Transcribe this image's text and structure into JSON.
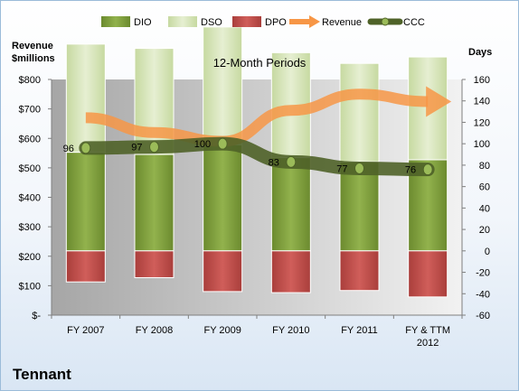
{
  "company": "Tennant",
  "chart_data": {
    "type": "bar",
    "title": "12-Month Periods",
    "categories": [
      "FY 2007",
      "FY 2008",
      "FY 2009",
      "FY 2010",
      "FY 2011",
      "FY & TTM 2012"
    ],
    "y_left": {
      "label_line1": "Revenue",
      "label_line2": "$millions",
      "range": [
        0,
        800
      ],
      "step": 100,
      "ticks": [
        "$-",
        "$100",
        "$200",
        "$300",
        "$400",
        "$500",
        "$600",
        "$700",
        "$800"
      ]
    },
    "y_right": {
      "label": "Days",
      "range": [
        -60,
        160
      ],
      "step": 20
    },
    "series": [
      {
        "name": "DIO",
        "kind": "stacked-bar",
        "color": "#77933c",
        "values": [
          92,
          90,
          99,
          87,
          83,
          85
        ]
      },
      {
        "name": "DSO",
        "kind": "stacked-bar",
        "color": "#d7e4bd",
        "values": [
          101,
          99,
          110,
          98,
          92,
          96
        ]
      },
      {
        "name": "DPO",
        "kind": "negative-bar",
        "color": "#c0504d",
        "values": [
          -29,
          -25,
          -38,
          -39,
          -37,
          -43
        ]
      },
      {
        "name": "Revenue",
        "kind": "arrow",
        "color": "#f79646",
        "values": [
          670,
          620,
          590,
          695,
          750,
          725
        ]
      },
      {
        "name": "CCC",
        "kind": "line",
        "color": "#4f6228",
        "values": [
          96,
          97,
          100,
          83,
          77,
          76
        ],
        "labels": [
          "96",
          "97",
          "100",
          "83",
          "77",
          "76"
        ]
      }
    ],
    "legend_position": "top",
    "grid": false
  }
}
